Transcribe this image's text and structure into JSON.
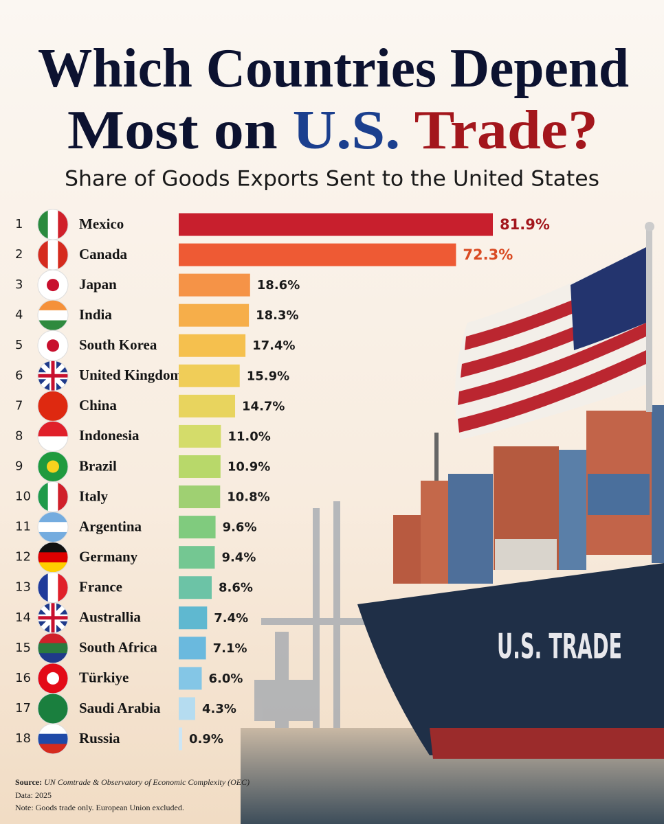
{
  "chart_data": {
    "type": "bar",
    "orientation": "horizontal",
    "title_parts": [
      {
        "text": "Which Countries Depend",
        "color": "#0c1230"
      },
      {
        "text": "Most on",
        "color": "#0c1230"
      },
      {
        "text": "U.S.",
        "color": "#1b3f8e"
      },
      {
        "text": "Trade?",
        "color": "#a3161c"
      }
    ],
    "subtitle": "Share of Goods Exports Sent to the United States",
    "ranks": [
      1,
      2,
      3,
      4,
      5,
      6,
      7,
      8,
      9,
      10,
      11,
      12,
      13,
      14,
      15,
      16,
      17,
      18
    ],
    "categories": [
      "Mexico",
      "Canada",
      "Japan",
      "India",
      "South Korea",
      "United Kingdom",
      "China",
      "Indonesia",
      "Brazil",
      "Italy",
      "Argentina",
      "Germany",
      "France",
      "Australlia",
      "South Africa",
      "Türkiye",
      "Saudi Arabia",
      "Russia"
    ],
    "values": [
      81.9,
      72.3,
      18.6,
      18.3,
      17.4,
      15.9,
      14.7,
      11.0,
      10.9,
      10.8,
      9.6,
      9.4,
      8.6,
      7.4,
      7.1,
      6.0,
      4.3,
      0.9
    ],
    "value_labels": [
      "81.9%",
      "72.3%",
      "18.6%",
      "18.3%",
      "17.4%",
      "15.9%",
      "14.7%",
      "11.0%",
      "10.9%",
      "10.8%",
      "9.6%",
      "9.4%",
      "8.6%",
      "7.4%",
      "7.1%",
      "6.0%",
      "4.3%",
      "0.9%"
    ],
    "colors": [
      "#c81f2d",
      "#ee5a34",
      "#f59347",
      "#f6ae4a",
      "#f5c04e",
      "#f0cd58",
      "#e8d45e",
      "#d4dc6a",
      "#b8d86a",
      "#9fd072",
      "#80cb7e",
      "#74c792",
      "#6cc3a6",
      "#5fb8d0",
      "#6ab9de",
      "#84c6e6",
      "#b5dcf0",
      "#cde6f5"
    ],
    "annotation": "U.S. TRADE",
    "source_label": "Source:",
    "source": "UN Comtrade & Observatory of Economic Complexity (OEC)",
    "data_note": "Data: 2025",
    "note": "Note: Goods trade only. European Union excluded."
  }
}
